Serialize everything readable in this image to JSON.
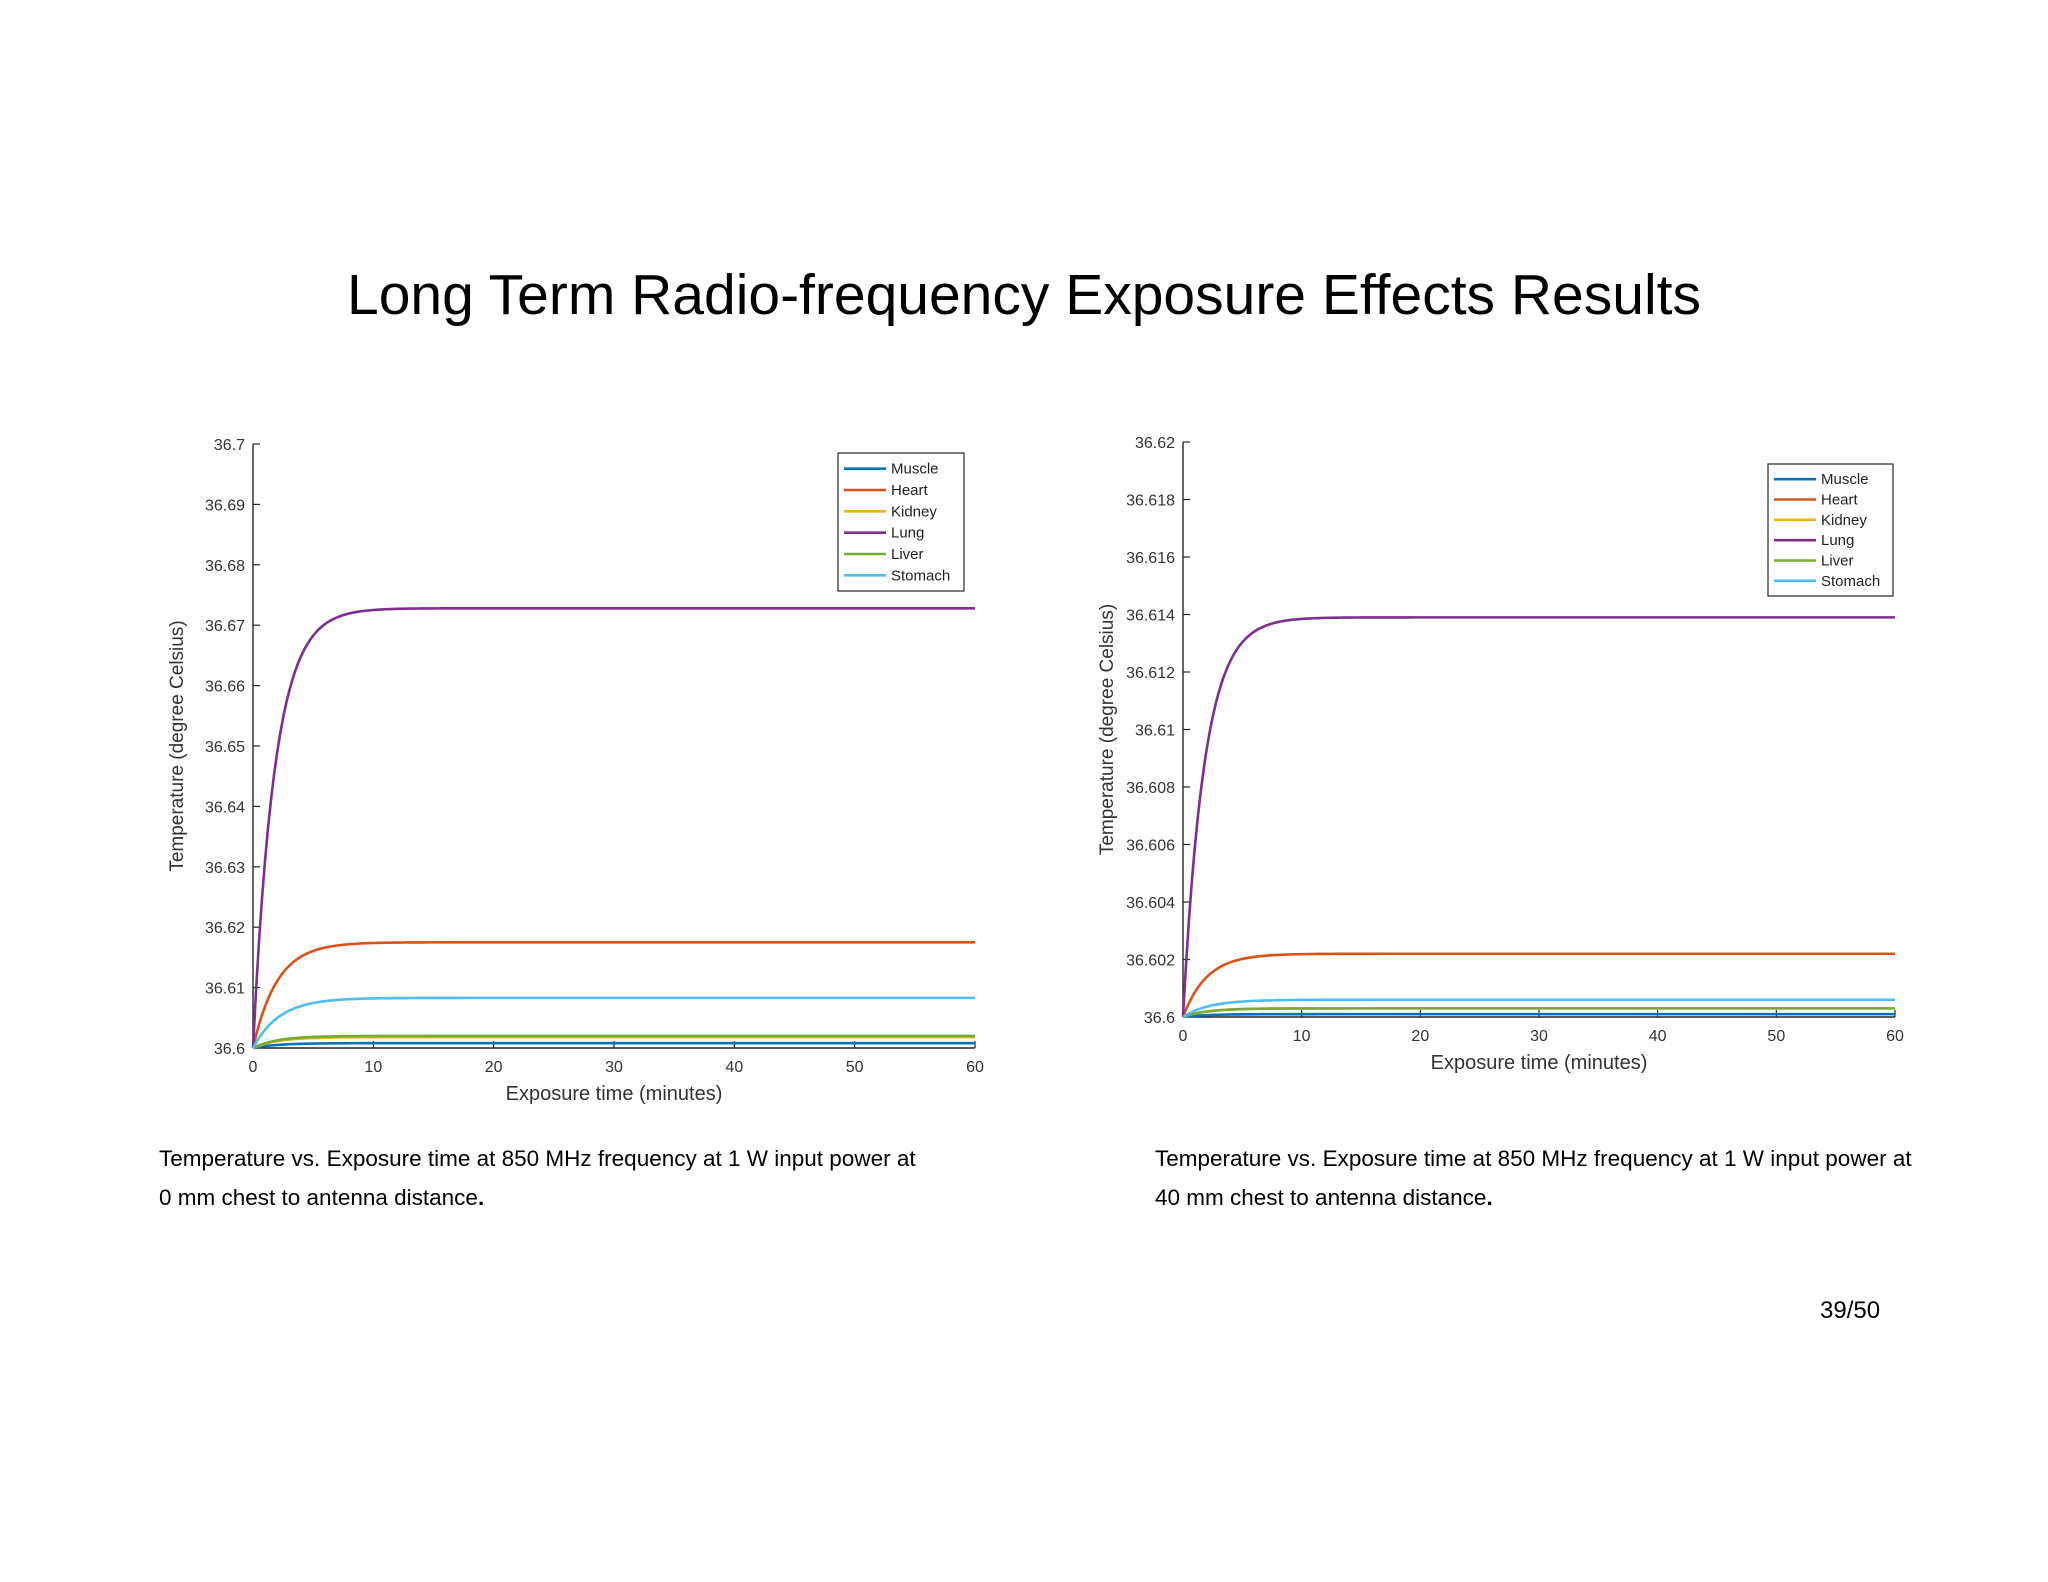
{
  "slide": {
    "title": "Long Term Radio-frequency Exposure Effects Results",
    "page_number": "39/50"
  },
  "captions": [
    {
      "line1": "Temperature vs. Exposure time at 850 MHz frequency at 1 W input power at",
      "line2": "0 mm chest to antenna distance",
      "end": "."
    },
    {
      "line1": "Temperature vs. Exposure time at 850 MHz frequency at 1 W input power at",
      "line2": "40 mm chest to antenna distance",
      "end": "."
    }
  ],
  "chart_data": [
    {
      "type": "line",
      "xlabel": "Exposure time (minutes)",
      "ylabel": "Temperature (degree Celsius)",
      "xlim": [
        0,
        60
      ],
      "ylim": [
        36.6,
        36.7
      ],
      "xticks": [
        "0",
        "10",
        "20",
        "30",
        "40",
        "50",
        "60"
      ],
      "yticks": [
        "36.6",
        "36.61",
        "36.62",
        "36.63",
        "36.64",
        "36.65",
        "36.66",
        "36.67",
        "36.68",
        "36.69",
        "36.7"
      ],
      "legend_position": "top-right",
      "grid": false,
      "series": [
        {
          "name": "Muscle",
          "color": "#0072BD",
          "start": 36.6,
          "steady": 36.6008,
          "tau_minutes": 2.0
        },
        {
          "name": "Heart",
          "color": "#D95319",
          "start": 36.6,
          "steady": 36.6175,
          "tau_minutes": 2.0
        },
        {
          "name": "Kidney",
          "color": "#EDB120",
          "start": 36.6,
          "steady": 36.6018,
          "tau_minutes": 2.0
        },
        {
          "name": "Lung",
          "color": "#7E2F8E",
          "start": 36.6,
          "steady": 36.6728,
          "tau_minutes": 1.8
        },
        {
          "name": "Liver",
          "color": "#77AC30",
          "start": 36.6,
          "steady": 36.602,
          "tau_minutes": 2.0
        },
        {
          "name": "Stomach",
          "color": "#4DBEEE",
          "start": 36.6,
          "steady": 36.6083,
          "tau_minutes": 2.2
        }
      ]
    },
    {
      "type": "line",
      "xlabel": "Exposure time (minutes)",
      "ylabel": "Temperature (degree Celsius)",
      "xlim": [
        0,
        60
      ],
      "ylim": [
        36.6,
        36.62
      ],
      "xticks": [
        "0",
        "10",
        "20",
        "30",
        "40",
        "50",
        "60"
      ],
      "yticks": [
        "36.6",
        "36.602",
        "36.604",
        "36.606",
        "36.608",
        "36.61",
        "36.612",
        "36.614",
        "36.616",
        "36.618",
        "36.62"
      ],
      "legend_position": "top-right",
      "grid": false,
      "series": [
        {
          "name": "Muscle",
          "color": "#0072BD",
          "start": 36.6,
          "steady": 36.6001,
          "tau_minutes": 2.0
        },
        {
          "name": "Heart",
          "color": "#D95319",
          "start": 36.6,
          "steady": 36.6022,
          "tau_minutes": 2.0
        },
        {
          "name": "Kidney",
          "color": "#EDB120",
          "start": 36.6,
          "steady": 36.6003,
          "tau_minutes": 2.0
        },
        {
          "name": "Lung",
          "color": "#7E2F8E",
          "start": 36.6,
          "steady": 36.6139,
          "tau_minutes": 1.8
        },
        {
          "name": "Liver",
          "color": "#77AC30",
          "start": 36.6,
          "steady": 36.6003,
          "tau_minutes": 2.0
        },
        {
          "name": "Stomach",
          "color": "#4DBEEE",
          "start": 36.6,
          "steady": 36.6006,
          "tau_minutes": 2.2
        }
      ]
    }
  ]
}
